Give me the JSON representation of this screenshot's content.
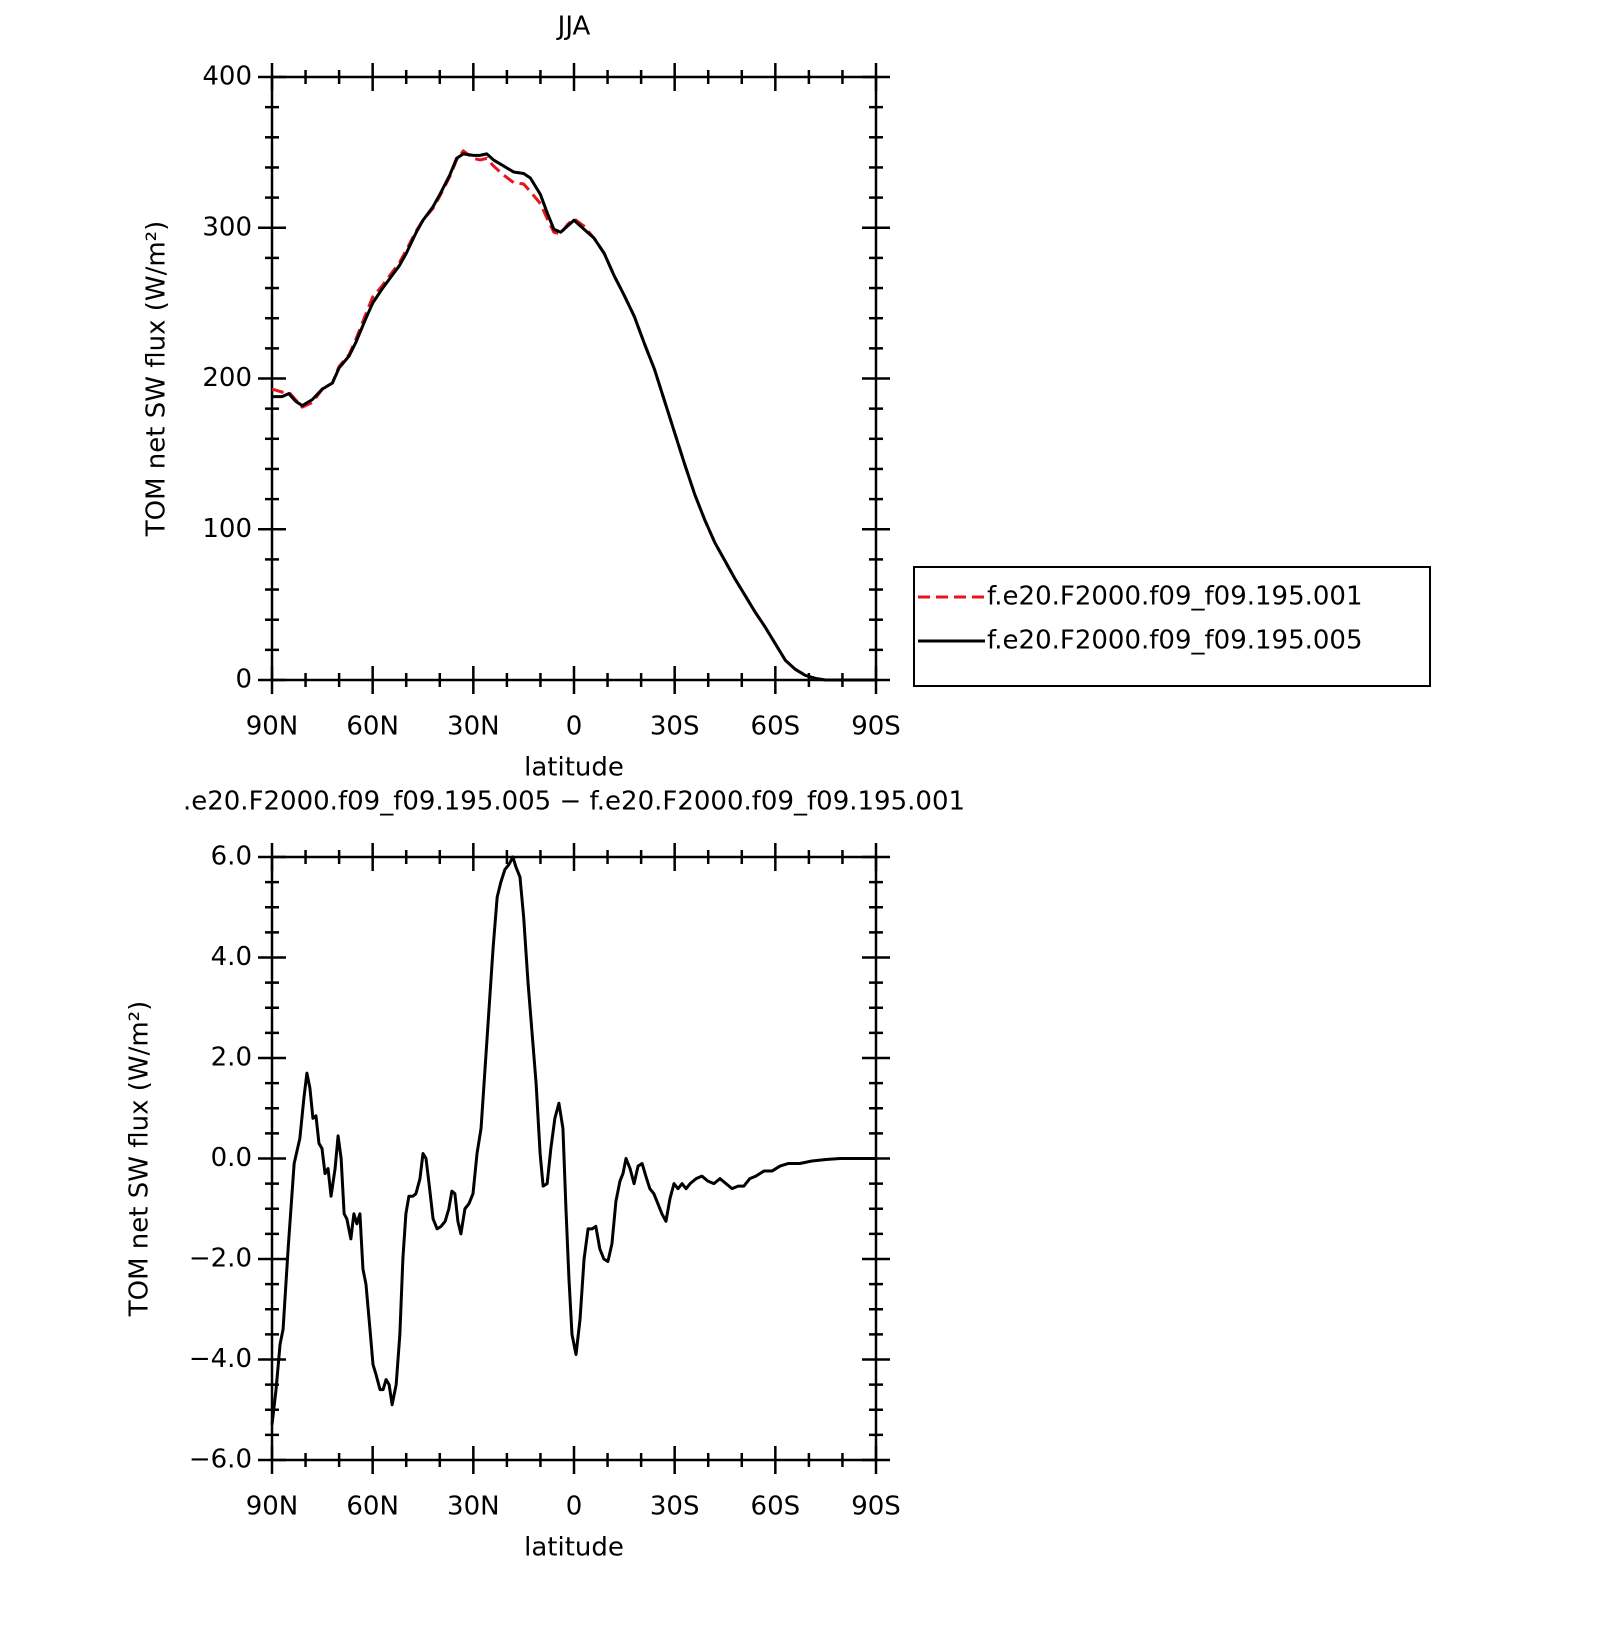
{
  "chart_data": [
    {
      "type": "line",
      "title": "JJA",
      "x_label": "latitude",
      "y_label": "TOM net SW flux (W/m²)",
      "xlim": [
        90,
        -90
      ],
      "xticks": [
        {
          "value": 90,
          "label": "90N"
        },
        {
          "value": 60,
          "label": "60N"
        },
        {
          "value": 30,
          "label": "30N"
        },
        0,
        {
          "value": -30,
          "label": "30S"
        },
        {
          "value": -60,
          "label": "60S"
        },
        {
          "value": -90,
          "label": "90S"
        }
      ],
      "ylim": [
        0,
        400
      ],
      "yticks": [
        0,
        100,
        200,
        300,
        400
      ],
      "legend": "right",
      "x": [
        90,
        87,
        85,
        83,
        81,
        78,
        75,
        72,
        70,
        67,
        65,
        62,
        60,
        57,
        55,
        52,
        50,
        47,
        45,
        42,
        40,
        37,
        35,
        33,
        30,
        28,
        26,
        24,
        21,
        18,
        15,
        13,
        10,
        8,
        6,
        4,
        2,
        0,
        -3,
        -6,
        -9,
        -12,
        -15,
        -18,
        -21,
        -24,
        -27,
        -30,
        -33,
        -36,
        -39,
        -42,
        -45,
        -48,
        -51,
        -54,
        -57,
        -60,
        -63,
        -66,
        -69,
        -72,
        -75,
        -80,
        -85,
        -90
      ],
      "series": [
        {
          "name": "f.e20.F2000.f09_f09.195.001",
          "color": "#e8141c",
          "dash": true,
          "values": [
            193,
            191,
            191,
            186,
            181,
            184,
            193,
            197,
            208,
            216,
            226,
            243,
            254,
            262,
            268,
            277,
            285,
            298,
            305,
            313,
            321,
            334,
            345,
            351,
            346,
            345,
            346,
            341,
            335,
            330,
            329,
            324,
            316,
            306,
            297,
            296,
            302,
            306,
            301,
            293,
            283,
            268,
            255,
            241,
            223,
            206,
            185,
            164,
            143,
            123,
            106,
            91,
            79,
            67,
            56,
            45,
            35,
            24,
            13,
            7,
            3,
            1,
            0,
            0,
            0,
            0
          ]
        },
        {
          "name": "f.e20.F2000.f09_f09.195.005",
          "color": "#000000",
          "dash": false,
          "values": [
            188,
            188,
            190,
            185,
            182,
            186,
            193,
            197,
            207,
            215,
            224,
            240,
            250,
            260,
            266,
            275,
            283,
            297,
            305,
            314,
            322,
            335,
            346,
            349,
            348,
            348,
            349,
            345,
            341,
            337,
            336,
            333,
            322,
            310,
            299,
            297,
            301,
            305,
            299,
            293,
            283,
            268,
            255,
            241,
            223,
            206,
            185,
            164,
            143,
            123,
            106,
            91,
            79,
            67,
            56,
            45,
            35,
            24,
            13,
            7,
            3,
            1,
            0,
            0,
            0,
            0
          ]
        }
      ]
    },
    {
      "type": "line",
      "title": ".e20.F2000.f09_f09.195.005 − f.e20.F2000.f09_f09.195.001",
      "x_label": "latitude",
      "y_label": "TOM net SW flux (W/m²)",
      "xlim": [
        90,
        -90
      ],
      "xticks": [
        {
          "value": 90,
          "label": "90N"
        },
        {
          "value": 60,
          "label": "60N"
        },
        {
          "value": 30,
          "label": "30N"
        },
        0,
        {
          "value": -30,
          "label": "30S"
        },
        {
          "value": -60,
          "label": "60S"
        },
        {
          "value": -90,
          "label": "90S"
        }
      ],
      "ylim": [
        -6,
        6
      ],
      "yticks": [
        {
          "value": -6,
          "label": "−6.0"
        },
        {
          "value": -4,
          "label": "−4.0"
        },
        {
          "value": -2,
          "label": "−2.0"
        },
        {
          "value": 0,
          "label": "0.0"
        },
        {
          "value": 2,
          "label": "2.0"
        },
        {
          "value": 4,
          "label": "4.0"
        },
        {
          "value": 6,
          "label": "6.0"
        }
      ],
      "color": "#000000",
      "x": [
        90,
        88.8,
        87.6,
        86.7,
        85.2,
        83.4,
        81.7,
        80.5,
        79.6,
        78.7,
        77.8,
        76.9,
        76,
        75.1,
        74.2,
        73.3,
        72.4,
        71.2,
        70.3,
        69.4,
        68.5,
        67.7,
        66.5,
        65.6,
        64.7,
        63.8,
        62.9,
        62,
        60.8,
        59.9,
        59,
        57.8,
        56.9,
        56,
        55.1,
        54.2,
        53,
        51.9,
        51,
        50.1,
        49.2,
        48,
        47.1,
        45.9,
        45,
        44.1,
        43.2,
        42,
        40.8,
        39.6,
        38.4,
        37.3,
        36.4,
        35.5,
        34.6,
        33.7,
        32.5,
        31.3,
        30.1,
        28.9,
        27.7,
        26.5,
        25.3,
        24.1,
        22.9,
        21.8,
        20.6,
        19.4,
        18.2,
        17.3,
        16.1,
        15,
        13.7,
        12.5,
        11.3,
        10.1,
        9.2,
        8,
        6.9,
        5.7,
        4.5,
        3.3,
        2.4,
        1.5,
        0.6,
        -0.6,
        -1.8,
        -3,
        -4.2,
        -5.4,
        -6.5,
        -7.7,
        -8.9,
        -10.1,
        -11.3,
        -12.5,
        -13.7,
        -14.6,
        -15.5,
        -16.7,
        -17.9,
        -19.1,
        -20.3,
        -21.4,
        -22.6,
        -23.8,
        -25,
        -26.2,
        -27.4,
        -28.6,
        -29.8,
        -31,
        -32.2,
        -33.4,
        -34.6,
        -36.4,
        -38.1,
        -39.9,
        -41.7,
        -43.5,
        -45.3,
        -47.1,
        -48.9,
        -50.6,
        -52.4,
        -54.2,
        -56.6,
        -59,
        -61.4,
        -63.8,
        -67.3,
        -70.9,
        -75.1,
        -79.3,
        -90
      ],
      "values": [
        -5.3,
        -4.6,
        -3.7,
        -3.4,
        -1.8,
        -0.1,
        0.4,
        1.2,
        1.7,
        1.4,
        0.8,
        0.85,
        0.3,
        0.2,
        -0.3,
        -0.2,
        -0.75,
        -0.2,
        0.45,
        0,
        -1.1,
        -1.2,
        -1.6,
        -1.1,
        -1.3,
        -1.1,
        -2.2,
        -2.5,
        -3.4,
        -4.1,
        -4.3,
        -4.6,
        -4.6,
        -4.4,
        -4.5,
        -4.9,
        -4.5,
        -3.5,
        -2,
        -1.1,
        -0.75,
        -0.75,
        -0.7,
        -0.4,
        0.1,
        0,
        -0.5,
        -1.2,
        -1.4,
        -1.35,
        -1.25,
        -1,
        -0.65,
        -0.7,
        -1.25,
        -1.5,
        -1,
        -0.9,
        -0.7,
        0.1,
        0.6,
        1.8,
        3,
        4.2,
        5.2,
        5.5,
        5.75,
        5.85,
        6,
        5.8,
        5.6,
        4.8,
        3.5,
        2.5,
        1.5,
        0.1,
        -0.55,
        -0.5,
        0.2,
        0.8,
        1.1,
        0.6,
        -1,
        -2.4,
        -3.5,
        -3.9,
        -3.2,
        -2,
        -1.4,
        -1.4,
        -1.35,
        -1.8,
        -2,
        -2.05,
        -1.7,
        -0.85,
        -0.45,
        -0.3,
        0,
        -0.2,
        -0.5,
        -0.15,
        -0.1,
        -0.35,
        -0.6,
        -0.7,
        -0.9,
        -1.1,
        -1.25,
        -0.8,
        -0.5,
        -0.6,
        -0.5,
        -0.6,
        -0.5,
        -0.4,
        -0.35,
        -0.45,
        -0.5,
        -0.4,
        -0.5,
        -0.6,
        -0.55,
        -0.55,
        -0.4,
        -0.35,
        -0.25,
        -0.25,
        -0.15,
        -0.1,
        -0.1,
        -0.05,
        -0.02,
        0,
        0
      ]
    }
  ]
}
